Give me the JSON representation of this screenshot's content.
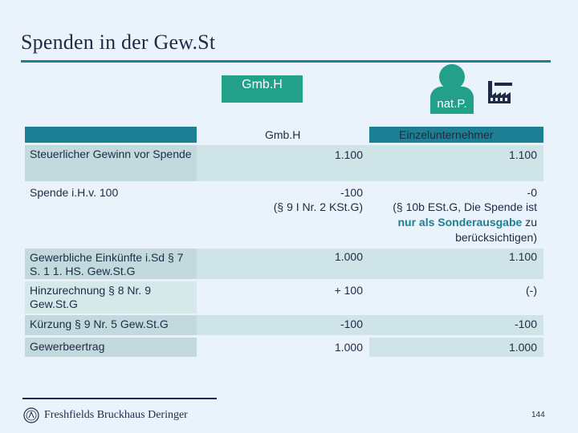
{
  "slide": {
    "title": "Spenden in der Gew.St",
    "page_number": "144"
  },
  "diagram": {
    "gmbh_label": "Gmb.H",
    "person_label": "nat.P.",
    "icons": [
      "person-icon",
      "factory-icon"
    ]
  },
  "table": {
    "col_gmbh": "Gmb.H",
    "col_einzel": "Einzelunternehmer",
    "rows": [
      {
        "label": "Steuerlicher Gewinn vor Spende",
        "gmbh": "1.100",
        "einzel": "1.100"
      },
      {
        "label": "Spende i.H.v. 100",
        "gmbh": "-100",
        "gmbh_note": "(§ 9 I Nr. 2 KSt.G)",
        "einzel": "-0",
        "einzel_note_a": "(§ 10b ESt.G, Die Spende ist",
        "einzel_note_b_pre": "nur als Sonderausgabe",
        "einzel_note_b_post": "zu",
        "einzel_note_c": "berücksichtigen)"
      },
      {
        "label": "Gewerbliche Einkünfte i.Sd § 7 S. 1 1. HS. Gew.St.G",
        "gmbh": "1.000",
        "einzel": "1.100"
      },
      {
        "label": "Hinzurechnung § 8 Nr. 9 Gew.St.G",
        "gmbh": "+ 100",
        "einzel": "(-)"
      },
      {
        "label": "Kürzung § 9 Nr. 5 Gew.St.G",
        "gmbh": "-100",
        "einzel": "-100"
      },
      {
        "label": "Gewerbeertrag",
        "gmbh": "1.000",
        "einzel": "1.000"
      }
    ]
  },
  "footer": {
    "logo_text": "Freshfields Bruckhaus Deringer"
  },
  "colors": {
    "accent": "#1d7f93",
    "green": "#23a08a",
    "background": "#eaf3fb"
  }
}
